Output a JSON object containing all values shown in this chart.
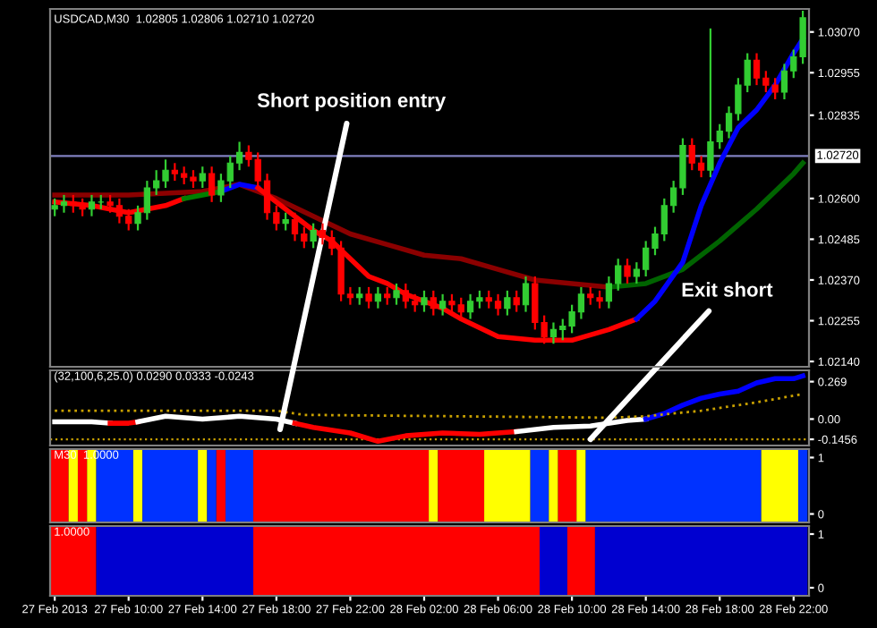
{
  "chart_data": [
    {
      "type": "candlestick",
      "title": "USDCAD,M30  1.02805 1.02806 1.02710 1.02720",
      "x": [
        "2013-02-27T06:00",
        "2013-02-27T06:30",
        "2013-02-27T07:00",
        "2013-02-27T07:30",
        "2013-02-27T08:00",
        "2013-02-27T08:30",
        "2013-02-27T09:00",
        "2013-02-27T09:30",
        "2013-02-27T10:00",
        "2013-02-27T10:30",
        "2013-02-27T11:00",
        "2013-02-27T11:30",
        "2013-02-27T12:00",
        "2013-02-27T12:30",
        "2013-02-27T13:00",
        "2013-02-27T13:30",
        "2013-02-27T14:00",
        "2013-02-27T14:30",
        "2013-02-27T15:00",
        "2013-02-27T15:30",
        "2013-02-27T16:00",
        "2013-02-27T16:30",
        "2013-02-27T17:00",
        "2013-02-27T17:30",
        "2013-02-27T18:00",
        "2013-02-27T18:30",
        "2013-02-27T19:00",
        "2013-02-27T19:30",
        "2013-02-27T20:00",
        "2013-02-27T20:30",
        "2013-02-27T21:00",
        "2013-02-27T21:30",
        "2013-02-27T22:00",
        "2013-02-27T22:30",
        "2013-02-27T23:00",
        "2013-02-27T23:30",
        "2013-02-28T00:00",
        "2013-02-28T00:30",
        "2013-02-28T01:00",
        "2013-02-28T01:30",
        "2013-02-28T02:00",
        "2013-02-28T02:30",
        "2013-02-28T03:00",
        "2013-02-28T03:30",
        "2013-02-28T04:00",
        "2013-02-28T04:30",
        "2013-02-28T05:00",
        "2013-02-28T05:30",
        "2013-02-28T06:00",
        "2013-02-28T06:30",
        "2013-02-28T07:00",
        "2013-02-28T07:30",
        "2013-02-28T08:00",
        "2013-02-28T08:30",
        "2013-02-28T09:00",
        "2013-02-28T09:30",
        "2013-02-28T10:00",
        "2013-02-28T10:30",
        "2013-02-28T11:00",
        "2013-02-28T11:30",
        "2013-02-28T12:00",
        "2013-02-28T12:30",
        "2013-02-28T13:00",
        "2013-02-28T13:30",
        "2013-02-28T14:00",
        "2013-02-28T14:30",
        "2013-02-28T15:00",
        "2013-02-28T15:30",
        "2013-02-28T16:00",
        "2013-02-28T16:30",
        "2013-02-28T17:00",
        "2013-02-28T17:30",
        "2013-02-28T18:00",
        "2013-02-28T18:30",
        "2013-02-28T19:00",
        "2013-02-28T19:30",
        "2013-02-28T20:00",
        "2013-02-28T20:30",
        "2013-02-28T21:00",
        "2013-02-28T21:30",
        "2013-02-28T22:00",
        "2013-02-28T22:30"
      ],
      "ohlc": [
        [
          1.0257,
          1.026,
          1.0255,
          1.0258
        ],
        [
          1.0258,
          1.0261,
          1.0256,
          1.0259
        ],
        [
          1.0259,
          1.0261,
          1.0256,
          1.0258
        ],
        [
          1.0258,
          1.026,
          1.0255,
          1.0257
        ],
        [
          1.0257,
          1.0261,
          1.0255,
          1.0259
        ],
        [
          1.0259,
          1.0261,
          1.0257,
          1.0259
        ],
        [
          1.0259,
          1.0261,
          1.0256,
          1.0258
        ],
        [
          1.0258,
          1.026,
          1.0253,
          1.0255
        ],
        [
          1.0255,
          1.0257,
          1.0251,
          1.0253
        ],
        [
          1.0253,
          1.0258,
          1.0251,
          1.0256
        ],
        [
          1.0256,
          1.0265,
          1.0254,
          1.0263
        ],
        [
          1.0263,
          1.0268,
          1.0261,
          1.0265
        ],
        [
          1.0265,
          1.0271,
          1.0263,
          1.0268
        ],
        [
          1.0268,
          1.027,
          1.0265,
          1.0267
        ],
        [
          1.0267,
          1.0269,
          1.0264,
          1.0266
        ],
        [
          1.0266,
          1.0268,
          1.0263,
          1.0265
        ],
        [
          1.0265,
          1.0269,
          1.0263,
          1.0267
        ],
        [
          1.0267,
          1.0269,
          1.0259,
          1.0261
        ],
        [
          1.0261,
          1.0267,
          1.0259,
          1.0265
        ],
        [
          1.0265,
          1.0272,
          1.0263,
          1.027
        ],
        [
          1.027,
          1.0276,
          1.0268,
          1.0273
        ],
        [
          1.0273,
          1.0275,
          1.0269,
          1.0271
        ],
        [
          1.0271,
          1.0273,
          1.0263,
          1.0265
        ],
        [
          1.0265,
          1.0267,
          1.0254,
          1.0256
        ],
        [
          1.0256,
          1.0258,
          1.0251,
          1.0253
        ],
        [
          1.0253,
          1.0256,
          1.0251,
          1.0254
        ],
        [
          1.0254,
          1.0256,
          1.0248,
          1.025
        ],
        [
          1.025,
          1.0252,
          1.0246,
          1.0248
        ],
        [
          1.0248,
          1.0253,
          1.0246,
          1.0251
        ],
        [
          1.0251,
          1.0253,
          1.0247,
          1.0249
        ],
        [
          1.0249,
          1.0251,
          1.0244,
          1.0246
        ],
        [
          1.0246,
          1.0248,
          1.0231,
          1.0233
        ],
        [
          1.0233,
          1.0235,
          1.023,
          1.0232
        ],
        [
          1.0232,
          1.0235,
          1.023,
          1.0233
        ],
        [
          1.0233,
          1.0235,
          1.0229,
          1.0231
        ],
        [
          1.0231,
          1.0235,
          1.0229,
          1.0233
        ],
        [
          1.0233,
          1.0235,
          1.023,
          1.0232
        ],
        [
          1.0232,
          1.0236,
          1.023,
          1.0234
        ],
        [
          1.0234,
          1.0236,
          1.0229,
          1.0231
        ],
        [
          1.0231,
          1.0233,
          1.0228,
          1.023
        ],
        [
          1.023,
          1.0234,
          1.0228,
          1.0232
        ],
        [
          1.0232,
          1.0234,
          1.0227,
          1.0229
        ],
        [
          1.0229,
          1.0233,
          1.0227,
          1.0231
        ],
        [
          1.0231,
          1.0233,
          1.0228,
          1.023
        ],
        [
          1.023,
          1.0232,
          1.0226,
          1.0228
        ],
        [
          1.0228,
          1.0233,
          1.0226,
          1.0231
        ],
        [
          1.0231,
          1.0234,
          1.0229,
          1.0232
        ],
        [
          1.0232,
          1.0234,
          1.0229,
          1.0231
        ],
        [
          1.0231,
          1.0233,
          1.0227,
          1.0229
        ],
        [
          1.0229,
          1.0234,
          1.0227,
          1.0232
        ],
        [
          1.0232,
          1.0234,
          1.0228,
          1.023
        ],
        [
          1.023,
          1.0238,
          1.0228,
          1.0236
        ],
        [
          1.0236,
          1.0238,
          1.0223,
          1.0225
        ],
        [
          1.0225,
          1.0227,
          1.0219,
          1.0221
        ],
        [
          1.0221,
          1.0225,
          1.0219,
          1.0223
        ],
        [
          1.0223,
          1.0226,
          1.022,
          1.0224
        ],
        [
          1.0224,
          1.023,
          1.0222,
          1.0228
        ],
        [
          1.0228,
          1.0235,
          1.0226,
          1.0233
        ],
        [
          1.0233,
          1.0235,
          1.023,
          1.0232
        ],
        [
          1.0232,
          1.0234,
          1.0229,
          1.0231
        ],
        [
          1.0231,
          1.0238,
          1.0229,
          1.0236
        ],
        [
          1.0236,
          1.0243,
          1.0234,
          1.0241
        ],
        [
          1.0241,
          1.0243,
          1.0236,
          1.0238
        ],
        [
          1.0238,
          1.0242,
          1.0236,
          1.024
        ],
        [
          1.024,
          1.0248,
          1.0238,
          1.0246
        ],
        [
          1.0246,
          1.0252,
          1.0244,
          1.025
        ],
        [
          1.025,
          1.026,
          1.0248,
          1.0258
        ],
        [
          1.0258,
          1.0265,
          1.0256,
          1.0263
        ],
        [
          1.0263,
          1.0277,
          1.0261,
          1.0275
        ],
        [
          1.0275,
          1.0277,
          1.0268,
          1.027
        ],
        [
          1.027,
          1.0272,
          1.0266,
          1.0268
        ],
        [
          1.0268,
          1.0308,
          1.0266,
          1.0276
        ],
        [
          1.0276,
          1.0281,
          1.0274,
          1.0279
        ],
        [
          1.0279,
          1.0286,
          1.0277,
          1.0284
        ],
        [
          1.0284,
          1.0294,
          1.0282,
          1.0292
        ],
        [
          1.0292,
          1.0301,
          1.029,
          1.0299
        ],
        [
          1.0299,
          1.0301,
          1.0292,
          1.0294
        ],
        [
          1.0294,
          1.0296,
          1.029,
          1.0292
        ],
        [
          1.0292,
          1.0294,
          1.0288,
          1.029
        ],
        [
          1.029,
          1.0298,
          1.0288,
          1.0296
        ],
        [
          1.0296,
          1.0302,
          1.0294,
          1.03
        ],
        [
          1.03,
          1.0313,
          1.0298,
          1.0311
        ]
      ],
      "colors": [
        "#32cd32",
        "#32cd32",
        "#ff0000",
        "#ff0000",
        "#32cd32",
        "#32cd32",
        "#ff0000",
        "#ff0000",
        "#ff0000",
        "#32cd32",
        "#32cd32",
        "#32cd32",
        "#32cd32",
        "#ff0000",
        "#ff0000",
        "#ff0000",
        "#32cd32",
        "#ff0000",
        "#32cd32",
        "#32cd32",
        "#32cd32",
        "#ff0000",
        "#ff0000",
        "#ff0000",
        "#ff0000",
        "#32cd32",
        "#ff0000",
        "#ff0000",
        "#32cd32",
        "#ff0000",
        "#ff0000",
        "#ff0000",
        "#ff0000",
        "#32cd32",
        "#ff0000",
        "#32cd32",
        "#ff0000",
        "#32cd32",
        "#ff0000",
        "#ff0000",
        "#32cd32",
        "#ff0000",
        "#32cd32",
        "#ff0000",
        "#ff0000",
        "#32cd32",
        "#32cd32",
        "#ff0000",
        "#ff0000",
        "#32cd32",
        "#ff0000",
        "#32cd32",
        "#ff0000",
        "#ff0000",
        "#32cd32",
        "#32cd32",
        "#32cd32",
        "#32cd32",
        "#ff0000",
        "#ff0000",
        "#32cd32",
        "#32cd32",
        "#ff0000",
        "#32cd32",
        "#32cd32",
        "#32cd32",
        "#32cd32",
        "#32cd32",
        "#32cd32",
        "#ff0000",
        "#ff0000",
        "#32cd32",
        "#32cd32",
        "#32cd32",
        "#32cd32",
        "#32cd32",
        "#ff0000",
        "#ff0000",
        "#ff0000",
        "#32cd32",
        "#32cd32",
        "#32cd32"
      ],
      "series": [
        {
          "type": "line",
          "color": "#8b0000",
          "x": [
            "2013-02-27T06:00",
            "2013-02-27T10:00",
            "2013-02-27T14:00",
            "2013-02-27T16:00",
            "2013-02-27T18:00",
            "2013-02-27T20:00",
            "2013-02-27T22:00",
            "2013-02-28T00:00",
            "2013-02-28T02:00",
            "2013-02-28T04:00",
            "2013-02-28T06:00",
            "2013-02-28T08:00",
            "2013-02-28T10:00",
            "2013-02-28T12:00"
          ],
          "values": [
            1.0261,
            1.0261,
            1.0262,
            1.0264,
            1.026,
            1.0255,
            1.025,
            1.0247,
            1.0244,
            1.0243,
            1.024,
            1.0237,
            1.0236,
            1.0235
          ]
        },
        {
          "type": "line",
          "color": "#006400",
          "x": [
            "2013-02-28T12:00",
            "2013-02-28T14:00",
            "2013-02-28T16:00",
            "2013-02-28T18:00",
            "2013-02-28T20:00",
            "2013-02-28T22:00",
            "2013-02-28T22:30"
          ],
          "values": [
            1.0235,
            1.0236,
            1.024,
            1.0248,
            1.0257,
            1.0267,
            1.027
          ]
        },
        {
          "type": "line",
          "color": "#ff0000",
          "x": [
            "2013-02-27T06:00",
            "2013-02-27T08:00",
            "2013-02-27T10:00",
            "2013-02-27T12:00",
            "2013-02-27T13:00"
          ],
          "values": [
            1.0259,
            1.0258,
            1.0256,
            1.0258,
            1.026
          ]
        },
        {
          "type": "line",
          "color": "#008000",
          "x": [
            "2013-02-27T13:00",
            "2013-02-27T14:00",
            "2013-02-27T15:00"
          ],
          "values": [
            1.026,
            1.0261,
            1.0262
          ]
        },
        {
          "type": "line",
          "color": "#0000ff",
          "x": [
            "2013-02-27T15:00",
            "2013-02-27T16:00",
            "2013-02-27T17:00"
          ],
          "values": [
            1.0262,
            1.0264,
            1.0263
          ]
        },
        {
          "type": "line",
          "color": "#ff0000",
          "x": [
            "2013-02-27T17:00",
            "2013-02-27T18:00",
            "2013-02-27T19:00",
            "2013-02-27T20:00",
            "2013-02-27T21:00",
            "2013-02-27T22:00",
            "2013-02-27T23:00",
            "2013-02-28T00:00",
            "2013-02-28T01:00",
            "2013-02-28T02:00",
            "2013-02-28T03:00",
            "2013-02-28T04:00",
            "2013-02-28T06:00",
            "2013-02-28T08:00",
            "2013-02-28T10:00",
            "2013-02-28T12:00",
            "2013-02-28T13:30"
          ],
          "values": [
            1.0263,
            1.0259,
            1.0255,
            1.0251,
            1.0248,
            1.0243,
            1.0238,
            1.0236,
            1.0233,
            1.0231,
            1.0229,
            1.0226,
            1.0221,
            1.022,
            1.022,
            1.0223,
            1.0226
          ]
        },
        {
          "type": "line",
          "color": "#0000ff",
          "x": [
            "2013-02-28T13:30",
            "2013-02-28T14:30",
            "2013-02-28T16:00",
            "2013-02-28T17:00",
            "2013-02-28T18:00",
            "2013-02-28T19:00",
            "2013-02-28T20:00",
            "2013-02-28T21:00",
            "2013-02-28T22:00",
            "2013-02-28T22:30"
          ],
          "values": [
            1.0226,
            1.0231,
            1.0242,
            1.0258,
            1.027,
            1.028,
            1.0285,
            1.0292,
            1.0301,
            1.0305
          ]
        }
      ],
      "xlim": [
        "2013-02-27T05:45",
        "2013-02-28T22:50"
      ],
      "ylim": [
        1.02125,
        1.03135
      ],
      "yticks": [
        {
          "value": 1.0307,
          "label": "1.03070"
        },
        {
          "value": 1.02955,
          "label": "1.02955"
        },
        {
          "value": 1.02835,
          "label": "1.02835"
        },
        {
          "value": 1.026,
          "label": "1.02600"
        },
        {
          "value": 1.02485,
          "label": "1.02485"
        },
        {
          "value": 1.0237,
          "label": "1.02370"
        },
        {
          "value": 1.02255,
          "label": "1.02255"
        },
        {
          "value": 1.0214,
          "label": "1.02140"
        }
      ],
      "ref_lines": [
        {
          "axis": "y",
          "value": 1.0272,
          "label": "1.02720",
          "color": "#8080c0"
        }
      ],
      "annotations": [
        "Short position entry"
      ],
      "tick_labels": "y"
    },
    {
      "type": "line",
      "title": "(32,100,6,25.0) 0.0290 0.0333 -0.0243",
      "series": [
        {
          "color": "#ffffff",
          "x": [
            "2013-02-27T06:00",
            "2013-02-27T08:00",
            "2013-02-27T09:00"
          ],
          "values": [
            -0.02,
            -0.02,
            -0.03
          ]
        },
        {
          "color": "#ff0000",
          "x": [
            "2013-02-27T09:00",
            "2013-02-27T10:00",
            "2013-02-27T10:30"
          ],
          "values": [
            -0.03,
            -0.03,
            -0.02
          ]
        },
        {
          "color": "#ffffff",
          "x": [
            "2013-02-27T10:30",
            "2013-02-27T12:00",
            "2013-02-27T14:00",
            "2013-02-27T16:00",
            "2013-02-27T18:00",
            "2013-02-27T19:00"
          ],
          "values": [
            -0.02,
            0.02,
            0.0,
            0.02,
            0.0,
            -0.03
          ]
        },
        {
          "color": "#ff0000",
          "x": [
            "2013-02-27T19:00",
            "2013-02-27T20:00",
            "2013-02-27T22:00",
            "2013-02-27T23:30",
            "2013-02-28T01:00",
            "2013-02-28T03:00",
            "2013-02-28T05:00",
            "2013-02-28T07:00"
          ],
          "values": [
            -0.03,
            -0.06,
            -0.1,
            -0.16,
            -0.12,
            -0.1,
            -0.11,
            -0.09
          ]
        },
        {
          "color": "#ffffff",
          "x": [
            "2013-02-28T07:00",
            "2013-02-28T09:00",
            "2013-02-28T11:00",
            "2013-02-28T13:00",
            "2013-02-28T14:00"
          ],
          "values": [
            -0.09,
            -0.06,
            -0.05,
            -0.01,
            0.0
          ]
        },
        {
          "color": "#0000ff",
          "x": [
            "2013-02-28T14:00",
            "2013-02-28T15:00",
            "2013-02-28T16:00",
            "2013-02-28T17:00",
            "2013-02-28T18:00",
            "2013-02-28T19:00",
            "2013-02-28T20:00",
            "2013-02-28T21:00",
            "2013-02-28T22:00",
            "2013-02-28T22:30"
          ],
          "values": [
            0.0,
            0.04,
            0.1,
            0.15,
            0.18,
            0.2,
            0.26,
            0.29,
            0.29,
            0.31
          ]
        },
        {
          "color": "#c8a000",
          "line_style": "dotted",
          "x": [
            "2013-02-27T06:00",
            "2013-02-27T18:00",
            "2013-02-27T19:30",
            "2013-02-28T12:00",
            "2013-02-28T14:00",
            "2013-02-28T17:00",
            "2013-02-28T20:00",
            "2013-02-28T22:30"
          ],
          "values": [
            0.06,
            0.06,
            0.03,
            0.01,
            0.02,
            0.06,
            0.12,
            0.18
          ]
        }
      ],
      "xlim": [
        "2013-02-27T05:45",
        "2013-02-28T22:50"
      ],
      "ylim": [
        -0.19,
        0.35
      ],
      "yticks": [
        0.269,
        {
          "value": 0,
          "label": "0.00"
        },
        -0.1456
      ],
      "ref_lines": [
        {
          "axis": "y",
          "value": -0.1456,
          "color": "#c8a000",
          "line_style": "dotted"
        }
      ],
      "annotations": [
        {
          "text": "Exit short",
          "x": "2013-02-28T11:00",
          "y": -0.1456
        }
      ],
      "tick_labels": "y"
    },
    {
      "type": "bar",
      "title": "M30  1.0000",
      "bands": [
        {
          "axis": "x",
          "from": "2013-02-27T05:45",
          "to": "2013-02-27T06:45",
          "color": "#ff0000"
        },
        {
          "axis": "x",
          "from": "2013-02-27T06:45",
          "to": "2013-02-27T07:15",
          "color": "#ffff00"
        },
        {
          "axis": "x",
          "from": "2013-02-27T07:15",
          "to": "2013-02-27T07:45",
          "color": "#ff0000"
        },
        {
          "axis": "x",
          "from": "2013-02-27T07:45",
          "to": "2013-02-27T08:15",
          "color": "#ffff00"
        },
        {
          "axis": "x",
          "from": "2013-02-27T08:15",
          "to": "2013-02-27T10:15",
          "color": "#0032ff"
        },
        {
          "axis": "x",
          "from": "2013-02-27T10:15",
          "to": "2013-02-27T10:45",
          "color": "#ffff00"
        },
        {
          "axis": "x",
          "from": "2013-02-27T10:45",
          "to": "2013-02-27T13:45",
          "color": "#0032ff"
        },
        {
          "axis": "x",
          "from": "2013-02-27T13:45",
          "to": "2013-02-27T14:15",
          "color": "#ffff00"
        },
        {
          "axis": "x",
          "from": "2013-02-27T14:15",
          "to": "2013-02-27T14:45",
          "color": "#0032ff"
        },
        {
          "axis": "x",
          "from": "2013-02-27T14:45",
          "to": "2013-02-27T15:15",
          "color": "#ff0000"
        },
        {
          "axis": "x",
          "from": "2013-02-27T15:15",
          "to": "2013-02-27T16:45",
          "color": "#0032ff"
        },
        {
          "axis": "x",
          "from": "2013-02-27T16:45",
          "to": "2013-02-28T02:15",
          "color": "#ff0000"
        },
        {
          "axis": "x",
          "from": "2013-02-28T02:15",
          "to": "2013-02-28T02:45",
          "color": "#ffff00"
        },
        {
          "axis": "x",
          "from": "2013-02-28T02:45",
          "to": "2013-02-28T05:15",
          "color": "#ff0000"
        },
        {
          "axis": "x",
          "from": "2013-02-28T05:15",
          "to": "2013-02-28T07:45",
          "color": "#ffff00"
        },
        {
          "axis": "x",
          "from": "2013-02-28T07:45",
          "to": "2013-02-28T08:45",
          "color": "#0032ff"
        },
        {
          "axis": "x",
          "from": "2013-02-28T08:45",
          "to": "2013-02-28T09:15",
          "color": "#ffff00"
        },
        {
          "axis": "x",
          "from": "2013-02-28T09:15",
          "to": "2013-02-28T10:15",
          "color": "#ff0000"
        },
        {
          "axis": "x",
          "from": "2013-02-28T10:15",
          "to": "2013-02-28T10:45",
          "color": "#ffff00"
        },
        {
          "axis": "x",
          "from": "2013-02-28T10:45",
          "to": "2013-02-28T20:15",
          "color": "#0032ff"
        },
        {
          "axis": "x",
          "from": "2013-02-28T20:15",
          "to": "2013-02-28T22:15",
          "color": "#ffff00"
        },
        {
          "axis": "x",
          "from": "2013-02-28T22:15",
          "to": "2013-02-28T22:45",
          "color": "#0032ff"
        }
      ],
      "xlim": [
        "2013-02-27T05:45",
        "2013-02-28T22:50"
      ],
      "ylim": [
        -0.15,
        1.15
      ],
      "yticks": [
        0,
        1
      ],
      "tick_labels": "y"
    },
    {
      "type": "bar",
      "title": "1.0000",
      "bands": [
        {
          "axis": "x",
          "from": "2013-02-27T05:45",
          "to": "2013-02-27T08:15",
          "color": "#ff0000"
        },
        {
          "axis": "x",
          "from": "2013-02-27T08:15",
          "to": "2013-02-27T16:45",
          "color": "#0000d0"
        },
        {
          "axis": "x",
          "from": "2013-02-27T16:45",
          "to": "2013-02-28T08:15",
          "color": "#ff0000"
        },
        {
          "axis": "x",
          "from": "2013-02-28T08:15",
          "to": "2013-02-28T09:45",
          "color": "#0000d0"
        },
        {
          "axis": "x",
          "from": "2013-02-28T09:45",
          "to": "2013-02-28T11:15",
          "color": "#ff0000"
        },
        {
          "axis": "x",
          "from": "2013-02-28T11:15",
          "to": "2013-02-28T22:45",
          "color": "#0000d0"
        }
      ],
      "xlim": [
        "2013-02-27T05:45",
        "2013-02-28T22:50"
      ],
      "ylim": [
        -0.15,
        1.15
      ],
      "yticks": [
        0,
        1
      ],
      "xticks": [
        {
          "value": "2013-02-27T06:00",
          "label": "27 Feb 2013"
        },
        {
          "value": "2013-02-27T10:00",
          "label": "27 Feb 10:00"
        },
        {
          "value": "2013-02-27T14:00",
          "label": "27 Feb 14:00"
        },
        {
          "value": "2013-02-27T18:00",
          "label": "27 Feb 18:00"
        },
        {
          "value": "2013-02-27T22:00",
          "label": "27 Feb 22:00"
        },
        {
          "value": "2013-02-28T02:00",
          "label": "28 Feb 02:00"
        },
        {
          "value": "2013-02-28T06:00",
          "label": "28 Feb 06:00"
        },
        {
          "value": "2013-02-28T10:00",
          "label": "28 Feb 10:00"
        },
        {
          "value": "2013-02-28T14:00",
          "label": "28 Feb 14:00"
        },
        {
          "value": "2013-02-28T18:00",
          "label": "28 Feb 18:00"
        },
        {
          "value": "2013-02-28T22:00",
          "label": "28 Feb 22:00"
        }
      ]
    }
  ]
}
